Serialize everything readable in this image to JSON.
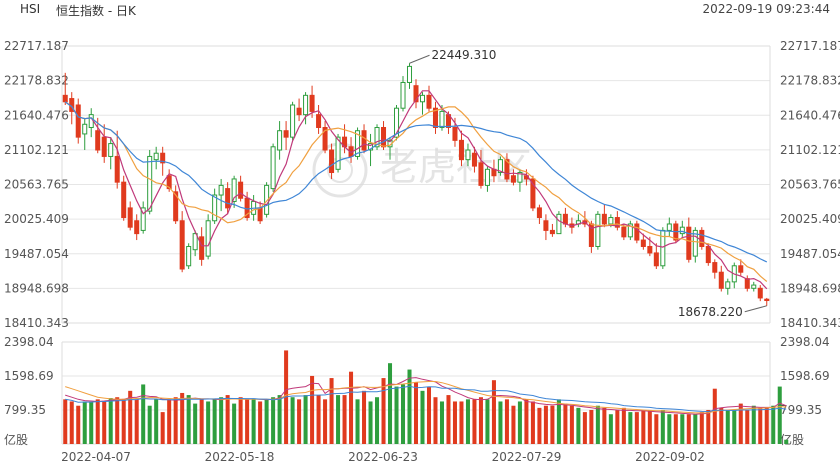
{
  "header": {
    "symbol": "HSI",
    "title": "恒生指数 - 日K",
    "timestamp": "2022-09-19 09:23:44"
  },
  "watermark": "老虎社区",
  "colors": {
    "up": "#2e9e3e",
    "down": "#e03a1e",
    "ma5": "#c0397a",
    "ma10": "#f0a040",
    "ma20": "#3f86d6",
    "grid": "#e6e6e6"
  },
  "chart_data": [
    {
      "type": "candlestick",
      "price_axis_labels": [
        "22717.187",
        "22178.832",
        "21640.476",
        "21102.121",
        "20563.765",
        "20025.409",
        "19487.054",
        "18948.698",
        "18410.343"
      ],
      "ylim": [
        18410.343,
        22717.187
      ],
      "x_tick_labels": [
        "2022-04-07",
        "2022-05-18",
        "2022-06-23",
        "2022-07-29",
        "2022-09-02"
      ],
      "annotations": [
        {
          "text": "22449.310",
          "value": 22449.31
        },
        {
          "text": "18678.220",
          "value": 18678.22
        }
      ],
      "candles": [
        {
          "o": 21950,
          "h": 22300,
          "l": 21800,
          "c": 21850
        },
        {
          "o": 21900,
          "h": 22000,
          "l": 21500,
          "c": 21700
        },
        {
          "o": 21800,
          "h": 21900,
          "l": 21200,
          "c": 21300
        },
        {
          "o": 21350,
          "h": 21600,
          "l": 21100,
          "c": 21500
        },
        {
          "o": 21450,
          "h": 21750,
          "l": 21300,
          "c": 21650
        },
        {
          "o": 21400,
          "h": 21600,
          "l": 21050,
          "c": 21100
        },
        {
          "o": 21300,
          "h": 21500,
          "l": 20900,
          "c": 21000
        },
        {
          "o": 21000,
          "h": 21300,
          "l": 20800,
          "c": 21200
        },
        {
          "o": 21000,
          "h": 21400,
          "l": 20500,
          "c": 20600
        },
        {
          "o": 20600,
          "h": 20700,
          "l": 20000,
          "c": 20050
        },
        {
          "o": 20200,
          "h": 20300,
          "l": 19850,
          "c": 19900
        },
        {
          "o": 20000,
          "h": 20100,
          "l": 19700,
          "c": 19800
        },
        {
          "o": 19850,
          "h": 20300,
          "l": 19800,
          "c": 20200
        },
        {
          "o": 20150,
          "h": 21100,
          "l": 20100,
          "c": 21000
        },
        {
          "o": 20950,
          "h": 21150,
          "l": 20800,
          "c": 21050
        },
        {
          "o": 21050,
          "h": 21150,
          "l": 20700,
          "c": 20900
        },
        {
          "o": 20700,
          "h": 20800,
          "l": 20450,
          "c": 20500
        },
        {
          "o": 20450,
          "h": 20550,
          "l": 19950,
          "c": 20000
        },
        {
          "o": 20000,
          "h": 20150,
          "l": 19200,
          "c": 19250
        },
        {
          "o": 19300,
          "h": 19650,
          "l": 19250,
          "c": 19600
        },
        {
          "o": 19550,
          "h": 19850,
          "l": 19450,
          "c": 19800
        },
        {
          "o": 19750,
          "h": 19900,
          "l": 19300,
          "c": 19400
        },
        {
          "o": 19450,
          "h": 20100,
          "l": 19400,
          "c": 20000
        },
        {
          "o": 20000,
          "h": 20500,
          "l": 19950,
          "c": 20400
        },
        {
          "o": 20400,
          "h": 20650,
          "l": 20150,
          "c": 20550
        },
        {
          "o": 20500,
          "h": 20600,
          "l": 20100,
          "c": 20200
        },
        {
          "o": 20300,
          "h": 20700,
          "l": 20200,
          "c": 20650
        },
        {
          "o": 20600,
          "h": 20700,
          "l": 20300,
          "c": 20350
        },
        {
          "o": 20350,
          "h": 20450,
          "l": 20000,
          "c": 20050
        },
        {
          "o": 20100,
          "h": 20400,
          "l": 20000,
          "c": 20300
        },
        {
          "o": 20200,
          "h": 20300,
          "l": 19950,
          "c": 20000
        },
        {
          "o": 20100,
          "h": 20600,
          "l": 20050,
          "c": 20550
        },
        {
          "o": 20500,
          "h": 21200,
          "l": 20450,
          "c": 21150
        },
        {
          "o": 21100,
          "h": 21550,
          "l": 20950,
          "c": 21400
        },
        {
          "o": 21400,
          "h": 21550,
          "l": 21100,
          "c": 21300
        },
        {
          "o": 21300,
          "h": 21850,
          "l": 21250,
          "c": 21800
        },
        {
          "o": 21750,
          "h": 21900,
          "l": 21550,
          "c": 21650
        },
        {
          "o": 21650,
          "h": 22000,
          "l": 21500,
          "c": 21950
        },
        {
          "o": 21950,
          "h": 22100,
          "l": 21600,
          "c": 21700
        },
        {
          "o": 21650,
          "h": 21800,
          "l": 21350,
          "c": 21450
        },
        {
          "o": 21450,
          "h": 21550,
          "l": 21050,
          "c": 21100
        },
        {
          "o": 21100,
          "h": 21200,
          "l": 20650,
          "c": 20750
        },
        {
          "o": 20800,
          "h": 21350,
          "l": 20750,
          "c": 21300
        },
        {
          "o": 21300,
          "h": 21500,
          "l": 21050,
          "c": 21150
        },
        {
          "o": 21150,
          "h": 21300,
          "l": 20900,
          "c": 21000
        },
        {
          "o": 21000,
          "h": 21450,
          "l": 20950,
          "c": 21400
        },
        {
          "o": 21400,
          "h": 21500,
          "l": 21050,
          "c": 21100
        },
        {
          "o": 21100,
          "h": 21350,
          "l": 20850,
          "c": 21200
        },
        {
          "o": 21150,
          "h": 21500,
          "l": 21100,
          "c": 21450
        },
        {
          "o": 21450,
          "h": 21550,
          "l": 21100,
          "c": 21150
        },
        {
          "o": 21150,
          "h": 21300,
          "l": 20950,
          "c": 21250
        },
        {
          "o": 21300,
          "h": 21800,
          "l": 21250,
          "c": 21750
        },
        {
          "o": 21750,
          "h": 22250,
          "l": 21700,
          "c": 22150
        },
        {
          "o": 22150,
          "h": 22449,
          "l": 22050,
          "c": 22400
        },
        {
          "o": 22100,
          "h": 22200,
          "l": 21750,
          "c": 21850
        },
        {
          "o": 21850,
          "h": 22000,
          "l": 21650,
          "c": 21950
        },
        {
          "o": 21950,
          "h": 22100,
          "l": 21700,
          "c": 21750
        },
        {
          "o": 21750,
          "h": 21850,
          "l": 21350,
          "c": 21450
        },
        {
          "o": 21450,
          "h": 21800,
          "l": 21400,
          "c": 21700
        },
        {
          "o": 21650,
          "h": 21700,
          "l": 21350,
          "c": 21450
        },
        {
          "o": 21450,
          "h": 21600,
          "l": 21150,
          "c": 21250
        },
        {
          "o": 21250,
          "h": 21400,
          "l": 20850,
          "c": 20950
        },
        {
          "o": 20950,
          "h": 21200,
          "l": 20850,
          "c": 21100
        },
        {
          "o": 21050,
          "h": 21150,
          "l": 20750,
          "c": 20850
        },
        {
          "o": 20900,
          "h": 21100,
          "l": 20500,
          "c": 20550
        },
        {
          "o": 20550,
          "h": 20850,
          "l": 20450,
          "c": 20800
        },
        {
          "o": 20800,
          "h": 20950,
          "l": 20600,
          "c": 20700
        },
        {
          "o": 20750,
          "h": 21000,
          "l": 20700,
          "c": 20950
        },
        {
          "o": 20950,
          "h": 21050,
          "l": 20600,
          "c": 20650
        },
        {
          "o": 20700,
          "h": 20800,
          "l": 20550,
          "c": 20600
        },
        {
          "o": 20600,
          "h": 20800,
          "l": 20450,
          "c": 20750
        },
        {
          "o": 20700,
          "h": 20800,
          "l": 20550,
          "c": 20650
        },
        {
          "o": 20650,
          "h": 20700,
          "l": 20150,
          "c": 20200
        },
        {
          "o": 20200,
          "h": 20250,
          "l": 19950,
          "c": 20050
        },
        {
          "o": 20000,
          "h": 20100,
          "l": 19700,
          "c": 19850
        },
        {
          "o": 19850,
          "h": 19950,
          "l": 19750,
          "c": 19800
        },
        {
          "o": 19800,
          "h": 20150,
          "l": 19800,
          "c": 20100
        },
        {
          "o": 20100,
          "h": 20200,
          "l": 19900,
          "c": 19950
        },
        {
          "o": 19950,
          "h": 20050,
          "l": 19800,
          "c": 19900
        },
        {
          "o": 19950,
          "h": 20100,
          "l": 19900,
          "c": 20000
        },
        {
          "o": 20000,
          "h": 20150,
          "l": 19900,
          "c": 19950
        },
        {
          "o": 19950,
          "h": 20000,
          "l": 19500,
          "c": 19600
        },
        {
          "o": 19600,
          "h": 20150,
          "l": 19550,
          "c": 20100
        },
        {
          "o": 20100,
          "h": 20250,
          "l": 19900,
          "c": 19950
        },
        {
          "o": 19950,
          "h": 20100,
          "l": 19900,
          "c": 20050
        },
        {
          "o": 20050,
          "h": 20150,
          "l": 19850,
          "c": 19900
        },
        {
          "o": 19900,
          "h": 19950,
          "l": 19700,
          "c": 19750
        },
        {
          "o": 19750,
          "h": 20000,
          "l": 19700,
          "c": 19950
        },
        {
          "o": 19950,
          "h": 20000,
          "l": 19650,
          "c": 19700
        },
        {
          "o": 19700,
          "h": 19800,
          "l": 19550,
          "c": 19600
        },
        {
          "o": 19600,
          "h": 19750,
          "l": 19450,
          "c": 19500
        },
        {
          "o": 19500,
          "h": 19650,
          "l": 19250,
          "c": 19300
        },
        {
          "o": 19300,
          "h": 19900,
          "l": 19250,
          "c": 19850
        },
        {
          "o": 19850,
          "h": 20050,
          "l": 19750,
          "c": 19950
        },
        {
          "o": 19950,
          "h": 20000,
          "l": 19650,
          "c": 19700
        },
        {
          "o": 19800,
          "h": 20000,
          "l": 19750,
          "c": 19900
        },
        {
          "o": 19900,
          "h": 20050,
          "l": 19350,
          "c": 19400
        },
        {
          "o": 19450,
          "h": 19900,
          "l": 19350,
          "c": 19850
        },
        {
          "o": 19850,
          "h": 19900,
          "l": 19550,
          "c": 19600
        },
        {
          "o": 19600,
          "h": 19650,
          "l": 19300,
          "c": 19350
        },
        {
          "o": 19350,
          "h": 19400,
          "l": 19100,
          "c": 19200
        },
        {
          "o": 19200,
          "h": 19300,
          "l": 18900,
          "c": 18950
        },
        {
          "o": 18950,
          "h": 19100,
          "l": 18850,
          "c": 19050
        },
        {
          "o": 19050,
          "h": 19350,
          "l": 18950,
          "c": 19300
        },
        {
          "o": 19300,
          "h": 19400,
          "l": 19150,
          "c": 19200
        },
        {
          "o": 19100,
          "h": 19150,
          "l": 18900,
          "c": 18950
        },
        {
          "o": 18950,
          "h": 19050,
          "l": 18900,
          "c": 19000
        },
        {
          "o": 18950,
          "h": 19000,
          "l": 18750,
          "c": 18800
        },
        {
          "o": 18780,
          "h": 18800,
          "l": 18678,
          "c": 18760
        }
      ]
    },
    {
      "type": "bar",
      "volume_axis_labels": [
        "2398.04",
        "1598.69",
        "799.35"
      ],
      "unit_label": "亿股",
      "ylim": [
        0,
        2398.04
      ],
      "values": [
        1050,
        1000,
        900,
        1000,
        980,
        1050,
        1010,
        1080,
        1100,
        1050,
        1250,
        1050,
        1400,
        900,
        1050,
        750,
        1050,
        1100,
        1200,
        1150,
        950,
        1050,
        1000,
        1050,
        1100,
        1150,
        950,
        1100,
        1050,
        1050,
        1000,
        1050,
        1100,
        1150,
        2200,
        1100,
        1050,
        1150,
        1600,
        1150,
        1050,
        1550,
        1150,
        1150,
        1700,
        1050,
        1250,
        1000,
        1100,
        1550,
        1900,
        1350,
        1400,
        1750,
        1450,
        1250,
        1350,
        1100,
        1000,
        1150,
        1000,
        1000,
        1050,
        1050,
        1100,
        1050,
        1500,
        1000,
        1050,
        900,
        1000,
        1050,
        1000,
        850,
        900,
        900,
        1050,
        950,
        900,
        850,
        750,
        800,
        900,
        850,
        700,
        800,
        850,
        750,
        750,
        800,
        800,
        700,
        800,
        700,
        700,
        700,
        700,
        700,
        750,
        800,
        1300,
        850,
        800,
        800,
        950,
        800,
        900,
        850,
        850,
        900,
        1350,
        100
      ],
      "ma5_volume": [
        1150,
        1100,
        1050,
        1020,
        1010,
        1000,
        1010,
        1030,
        1040,
        1050,
        1090,
        1100,
        1140,
        1120,
        1110,
        1050,
        1040,
        1030,
        1040,
        1060,
        1080,
        1060,
        1060,
        1050,
        1040,
        1060,
        1060,
        1060,
        1050,
        1060,
        1050,
        1040,
        1050,
        1080,
        1280,
        1310,
        1330,
        1350,
        1430,
        1420,
        1190,
        1300,
        1300,
        1310,
        1310,
        1320,
        1350,
        1280,
        1320,
        1350,
        1410,
        1400,
        1470,
        1550,
        1560,
        1520,
        1490,
        1460,
        1360,
        1300,
        1220,
        1160,
        1090,
        1050,
        1040,
        1050,
        1130,
        1140,
        1130,
        1120,
        1090,
        1000,
        980,
        950,
        930,
        920,
        930,
        920,
        910,
        890,
        870,
        850,
        830,
        820,
        810,
        800,
        790,
        790,
        780,
        780,
        770,
        760,
        750,
        740,
        730,
        720,
        710,
        700,
        710,
        720,
        830,
        850,
        870,
        880,
        890,
        880,
        870,
        860,
        860,
        860,
        960,
        900
      ],
      "ma10_volume": [
        1350,
        1300,
        1250,
        1200,
        1150,
        1100,
        1080,
        1060,
        1050,
        1050,
        1060,
        1070,
        1080,
        1090,
        1090,
        1080,
        1070,
        1060,
        1070,
        1080,
        1070,
        1060,
        1060,
        1060,
        1050,
        1050,
        1060,
        1050,
        1050,
        1050,
        1050,
        1050,
        1050,
        1060,
        1150,
        1180,
        1200,
        1210,
        1260,
        1280,
        1280,
        1290,
        1300,
        1320,
        1330,
        1340,
        1340,
        1330,
        1330,
        1350,
        1380,
        1400,
        1410,
        1430,
        1450,
        1460,
        1470,
        1470,
        1440,
        1400,
        1350,
        1300,
        1260,
        1220,
        1180,
        1140,
        1120,
        1110,
        1100,
        1090,
        1070,
        1050,
        1040,
        1020,
        1000,
        980,
        960,
        940,
        930,
        920,
        900,
        890,
        870,
        860,
        850,
        840,
        830,
        820,
        810,
        800,
        790,
        780,
        780,
        770,
        760,
        750,
        740,
        730,
        730,
        730,
        770,
        790,
        800,
        810,
        820,
        830,
        840,
        840,
        850,
        860,
        880,
        870
      ]
    }
  ]
}
